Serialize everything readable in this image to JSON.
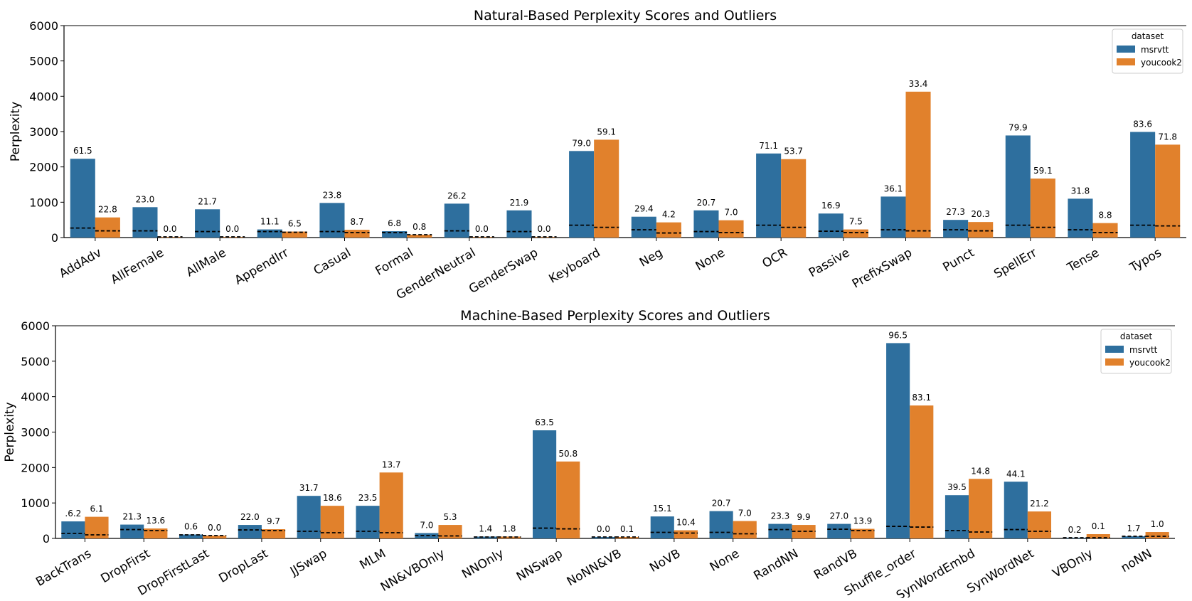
{
  "series_colors": {
    "msrvtt": "#2e6f9e",
    "youcook2": "#e1812c"
  },
  "chart_data": [
    {
      "type": "bar",
      "title": "Natural-Based Perplexity Scores and Outliers",
      "xlabel": "",
      "ylabel": "Perplexity",
      "ylim": [
        0,
        6000
      ],
      "yticks": [
        "0",
        "1000",
        "2000",
        "3000",
        "4000",
        "5000",
        "6000"
      ],
      "grid": false,
      "legend": {
        "title": "dataset",
        "placement": "top-right"
      },
      "categories": [
        "AddAdv",
        "AllFemale",
        "AllMale",
        "AppendIrr",
        "Casual",
        "Formal",
        "GenderNeutral",
        "GenderSwap",
        "Keyboard",
        "Neg",
        "None",
        "OCR",
        "Passive",
        "PrefixSwap",
        "Punct",
        "SpellErr",
        "Tense",
        "Typos"
      ],
      "series": [
        {
          "name": "msrvtt",
          "values": [
            2230,
            860,
            800,
            230,
            980,
            180,
            960,
            770,
            2450,
            590,
            770,
            2380,
            680,
            1160,
            500,
            2890,
            1100,
            2990
          ],
          "medians": [
            270,
            190,
            170,
            170,
            170,
            140,
            190,
            170,
            350,
            220,
            170,
            350,
            180,
            220,
            220,
            350,
            220,
            350
          ],
          "labels": [
            "61.5",
            "23.0",
            "21.7",
            "11.1",
            "23.8",
            "6.8",
            "26.2",
            "21.9",
            "79.0",
            "29.4",
            "20.7",
            "71.1",
            "16.9",
            "36.1",
            "27.3",
            "79.9",
            "31.8",
            "83.6"
          ]
        },
        {
          "name": "youcook2",
          "values": [
            570,
            20,
            20,
            170,
            220,
            80,
            20,
            20,
            2770,
            430,
            490,
            2220,
            230,
            4130,
            440,
            1670,
            410,
            2630
          ],
          "medians": [
            190,
            20,
            20,
            150,
            140,
            80,
            20,
            20,
            290,
            130,
            140,
            290,
            140,
            190,
            190,
            290,
            140,
            330
          ],
          "labels": [
            "22.8",
            "0.0",
            "0.0",
            "6.5",
            "8.7",
            "0.8",
            "0.0",
            "0.0",
            "59.1",
            "4.2",
            "7.0",
            "53.7",
            "7.5",
            "33.4",
            "20.3",
            "59.1",
            "8.8",
            "71.8"
          ]
        }
      ]
    },
    {
      "type": "bar",
      "title": "Machine-Based Perplexity Scores and Outliers",
      "xlabel": "",
      "ylabel": "Perplexity",
      "ylim": [
        0,
        6000
      ],
      "yticks": [
        "0",
        "1000",
        "2000",
        "3000",
        "4000",
        "5000",
        "6000"
      ],
      "grid": false,
      "legend": {
        "title": "dataset",
        "placement": "top-right"
      },
      "categories": [
        "BackTrans",
        "DropFirst",
        "DropFirstLast",
        "DropLast",
        "JJSwap",
        "MLM",
        "NN&VBOnly",
        "NNOnly",
        "NNSwap",
        "NoNN&VB",
        "NoVB",
        "None",
        "RandNN",
        "RandVB",
        "Shuffle_order",
        "SynWordEmbd",
        "SynWordNet",
        "VBOnly",
        "noNN"
      ],
      "series": [
        {
          "name": "msrvtt",
          "values": [
            480,
            390,
            110,
            380,
            1200,
            920,
            150,
            50,
            3050,
            40,
            620,
            770,
            410,
            410,
            5510,
            1220,
            1600,
            20,
            60
          ],
          "medians": [
            140,
            250,
            100,
            240,
            200,
            200,
            80,
            40,
            290,
            40,
            170,
            170,
            250,
            260,
            340,
            220,
            250,
            20,
            60
          ],
          "labels": [
            ".6.2",
            "21.3",
            "0.6",
            "22.0",
            "31.7",
            "23.5",
            "7.0",
            "1.4",
            "63.5",
            "0.0",
            "15.1",
            "20.7",
            "23.3",
            "27.0",
            "96.5",
            "39.5",
            "44.1",
            "0.2",
            "1.7"
          ]
        },
        {
          "name": "youcook2",
          "values": [
            610,
            280,
            80,
            260,
            920,
            1860,
            380,
            50,
            2170,
            40,
            230,
            490,
            380,
            270,
            3750,
            1680,
            760,
            120,
            180
          ],
          "medians": [
            100,
            220,
            80,
            220,
            160,
            160,
            70,
            40,
            270,
            40,
            150,
            130,
            200,
            220,
            320,
            180,
            200,
            20,
            60
          ],
          "labels": [
            "6.1",
            "13.6",
            "0.0",
            "9.7",
            "18.6",
            "13.7",
            "5.3",
            "1.8",
            "50.8",
            "0.1",
            "10.4",
            "7.0",
            "9.9",
            "13.9",
            "83.1",
            "14.8",
            "21.2",
            "0.1",
            "1.0"
          ]
        }
      ]
    }
  ]
}
